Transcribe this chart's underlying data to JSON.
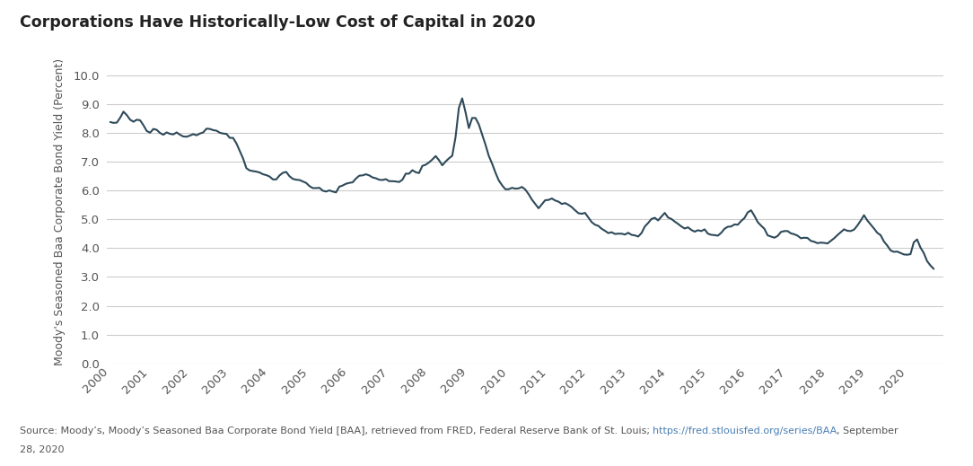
{
  "title": "Corporations Have Historically-Low Cost of Capital in 2020",
  "ylabel": "Moody's Seasoned Baa Corporate Bond Yield (Percent)",
  "source_url": "https://fred.stlouisfed.org/series/BAA",
  "line_color": "#2e4a5a",
  "background_color": "#ffffff",
  "grid_color": "#cccccc",
  "tick_color": "#555555",
  "title_color": "#222222",
  "ylabel_color": "#555555",
  "ylim": [
    0.0,
    10.5
  ],
  "yticks": [
    0.0,
    1.0,
    2.0,
    3.0,
    4.0,
    5.0,
    6.0,
    7.0,
    8.0,
    9.0,
    10.0
  ],
  "xlim_start": 1999.92,
  "xlim_end": 2020.92,
  "xtick_years": [
    2000,
    2001,
    2002,
    2003,
    2004,
    2005,
    2006,
    2007,
    2008,
    2009,
    2010,
    2011,
    2012,
    2013,
    2014,
    2015,
    2016,
    2017,
    2018,
    2019,
    2020
  ],
  "data": {
    "2000-01": 8.37,
    "2000-02": 8.34,
    "2000-03": 8.35,
    "2000-04": 8.52,
    "2000-05": 8.73,
    "2000-06": 8.61,
    "2000-07": 8.45,
    "2000-08": 8.38,
    "2000-09": 8.45,
    "2000-10": 8.43,
    "2000-11": 8.26,
    "2000-12": 8.06,
    "2001-01": 8.0,
    "2001-02": 8.13,
    "2001-03": 8.1,
    "2001-04": 7.99,
    "2001-05": 7.93,
    "2001-06": 8.01,
    "2001-07": 7.96,
    "2001-08": 7.94,
    "2001-09": 8.01,
    "2001-10": 7.93,
    "2001-11": 7.87,
    "2001-12": 7.86,
    "2002-01": 7.9,
    "2002-02": 7.95,
    "2002-03": 7.91,
    "2002-04": 7.97,
    "2002-05": 8.01,
    "2002-06": 8.14,
    "2002-07": 8.13,
    "2002-08": 8.09,
    "2002-09": 8.07,
    "2002-10": 8.0,
    "2002-11": 7.97,
    "2002-12": 7.96,
    "2003-01": 7.82,
    "2003-02": 7.82,
    "2003-03": 7.63,
    "2003-04": 7.37,
    "2003-05": 7.11,
    "2003-06": 6.77,
    "2003-07": 6.69,
    "2003-08": 6.67,
    "2003-09": 6.65,
    "2003-10": 6.62,
    "2003-11": 6.56,
    "2003-12": 6.53,
    "2004-01": 6.48,
    "2004-02": 6.38,
    "2004-03": 6.38,
    "2004-04": 6.52,
    "2004-05": 6.61,
    "2004-06": 6.64,
    "2004-07": 6.49,
    "2004-08": 6.4,
    "2004-09": 6.37,
    "2004-10": 6.36,
    "2004-11": 6.31,
    "2004-12": 6.26,
    "2005-01": 6.15,
    "2005-02": 6.08,
    "2005-03": 6.08,
    "2005-04": 6.09,
    "2005-05": 5.99,
    "2005-06": 5.96,
    "2005-07": 6.0,
    "2005-08": 5.96,
    "2005-09": 5.93,
    "2005-10": 6.13,
    "2005-11": 6.17,
    "2005-12": 6.23,
    "2006-01": 6.26,
    "2006-02": 6.28,
    "2006-03": 6.41,
    "2006-04": 6.51,
    "2006-05": 6.52,
    "2006-06": 6.56,
    "2006-07": 6.52,
    "2006-08": 6.45,
    "2006-09": 6.42,
    "2006-10": 6.37,
    "2006-11": 6.36,
    "2006-12": 6.39,
    "2007-01": 6.32,
    "2007-02": 6.32,
    "2007-03": 6.31,
    "2007-04": 6.29,
    "2007-05": 6.37,
    "2007-06": 6.58,
    "2007-07": 6.58,
    "2007-08": 6.7,
    "2007-09": 6.63,
    "2007-10": 6.6,
    "2007-11": 6.85,
    "2007-12": 6.89,
    "2008-01": 6.97,
    "2008-02": 7.07,
    "2008-03": 7.19,
    "2008-04": 7.05,
    "2008-05": 6.87,
    "2008-06": 7.0,
    "2008-07": 7.11,
    "2008-08": 7.2,
    "2008-09": 7.85,
    "2008-10": 8.86,
    "2008-11": 9.19,
    "2008-12": 8.71,
    "2009-01": 8.16,
    "2009-02": 8.51,
    "2009-03": 8.51,
    "2009-04": 8.29,
    "2009-05": 7.94,
    "2009-06": 7.59,
    "2009-07": 7.2,
    "2009-08": 6.93,
    "2009-09": 6.62,
    "2009-10": 6.35,
    "2009-11": 6.18,
    "2009-12": 6.04,
    "2010-01": 6.04,
    "2010-02": 6.09,
    "2010-03": 6.06,
    "2010-04": 6.07,
    "2010-05": 6.12,
    "2010-06": 6.03,
    "2010-07": 5.87,
    "2010-08": 5.68,
    "2010-09": 5.53,
    "2010-10": 5.38,
    "2010-11": 5.52,
    "2010-12": 5.66,
    "2011-01": 5.67,
    "2011-02": 5.72,
    "2011-03": 5.65,
    "2011-04": 5.61,
    "2011-05": 5.53,
    "2011-06": 5.56,
    "2011-07": 5.5,
    "2011-08": 5.42,
    "2011-09": 5.31,
    "2011-10": 5.21,
    "2011-11": 5.19,
    "2011-12": 5.22,
    "2012-01": 5.06,
    "2012-02": 4.9,
    "2012-03": 4.81,
    "2012-04": 4.77,
    "2012-05": 4.67,
    "2012-06": 4.6,
    "2012-07": 4.52,
    "2012-08": 4.55,
    "2012-09": 4.49,
    "2012-10": 4.5,
    "2012-11": 4.5,
    "2012-12": 4.47,
    "2013-01": 4.53,
    "2013-02": 4.46,
    "2013-03": 4.44,
    "2013-04": 4.4,
    "2013-05": 4.52,
    "2013-06": 4.75,
    "2013-07": 4.87,
    "2013-08": 5.01,
    "2013-09": 5.05,
    "2013-10": 4.96,
    "2013-11": 5.09,
    "2013-12": 5.22,
    "2014-01": 5.06,
    "2014-02": 5.01,
    "2014-03": 4.92,
    "2014-04": 4.84,
    "2014-05": 4.75,
    "2014-06": 4.68,
    "2014-07": 4.72,
    "2014-08": 4.63,
    "2014-09": 4.57,
    "2014-10": 4.62,
    "2014-11": 4.59,
    "2014-12": 4.65,
    "2015-01": 4.5,
    "2015-02": 4.46,
    "2015-03": 4.45,
    "2015-04": 4.43,
    "2015-05": 4.53,
    "2015-06": 4.67,
    "2015-07": 4.74,
    "2015-08": 4.75,
    "2015-09": 4.82,
    "2015-10": 4.81,
    "2015-11": 4.94,
    "2015-12": 5.04,
    "2016-01": 5.24,
    "2016-02": 5.31,
    "2016-03": 5.12,
    "2016-04": 4.9,
    "2016-05": 4.78,
    "2016-06": 4.67,
    "2016-07": 4.44,
    "2016-08": 4.4,
    "2016-09": 4.36,
    "2016-10": 4.42,
    "2016-11": 4.56,
    "2016-12": 4.59,
    "2017-01": 4.59,
    "2017-02": 4.51,
    "2017-03": 4.48,
    "2017-04": 4.43,
    "2017-05": 4.34,
    "2017-06": 4.36,
    "2017-07": 4.35,
    "2017-08": 4.25,
    "2017-09": 4.22,
    "2017-10": 4.17,
    "2017-11": 4.19,
    "2017-12": 4.18,
    "2018-01": 4.16,
    "2018-02": 4.25,
    "2018-03": 4.34,
    "2018-04": 4.45,
    "2018-05": 4.55,
    "2018-06": 4.65,
    "2018-07": 4.6,
    "2018-08": 4.59,
    "2018-09": 4.64,
    "2018-10": 4.78,
    "2018-11": 4.95,
    "2018-12": 5.14,
    "2019-01": 4.96,
    "2019-02": 4.82,
    "2019-03": 4.68,
    "2019-04": 4.53,
    "2019-05": 4.45,
    "2019-06": 4.23,
    "2019-07": 4.09,
    "2019-08": 3.92,
    "2019-09": 3.87,
    "2019-10": 3.88,
    "2019-11": 3.83,
    "2019-12": 3.78,
    "2020-01": 3.77,
    "2020-02": 3.79,
    "2020-03": 4.2,
    "2020-04": 4.3,
    "2020-05": 4.02,
    "2020-06": 3.83,
    "2020-07": 3.55,
    "2020-08": 3.4,
    "2020-09": 3.28
  }
}
